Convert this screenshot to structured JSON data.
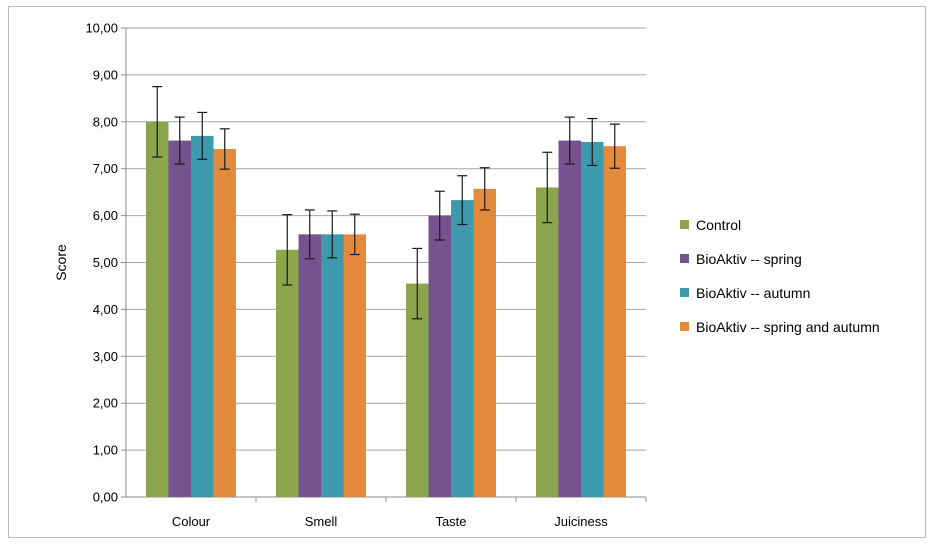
{
  "chart_data": {
    "type": "bar",
    "title": "",
    "xlabel": "",
    "ylabel": "Score",
    "ylim": [
      0,
      10
    ],
    "ytick_step": 1,
    "ytick_labels": [
      "0,00",
      "1,00",
      "2,00",
      "3,00",
      "4,00",
      "5,00",
      "6,00",
      "7,00",
      "8,00",
      "9,00",
      "10,00"
    ],
    "grid": true,
    "legend_position": "right",
    "error_bars": true,
    "categories": [
      "Colour",
      "Smell",
      "Taste",
      "Juiciness"
    ],
    "series": [
      {
        "name": "Control",
        "color": "#8aa54b",
        "values": [
          8.0,
          5.27,
          4.55,
          6.6
        ],
        "errors": [
          0.75,
          0.75,
          0.75,
          0.75
        ]
      },
      {
        "name": "BioAktiv -- spring",
        "color": "#76538f",
        "values": [
          7.6,
          5.6,
          6.0,
          7.6
        ],
        "errors": [
          0.5,
          0.52,
          0.52,
          0.5
        ]
      },
      {
        "name": "BioAktiv -- autumn",
        "color": "#3d9aad",
        "values": [
          7.7,
          5.6,
          6.33,
          7.57
        ],
        "errors": [
          0.5,
          0.5,
          0.52,
          0.5
        ]
      },
      {
        "name": "BioAktiv -- spring and autumn",
        "color": "#e48a3c",
        "values": [
          7.42,
          5.6,
          6.57,
          7.48
        ],
        "errors": [
          0.43,
          0.43,
          0.45,
          0.47
        ]
      }
    ]
  }
}
